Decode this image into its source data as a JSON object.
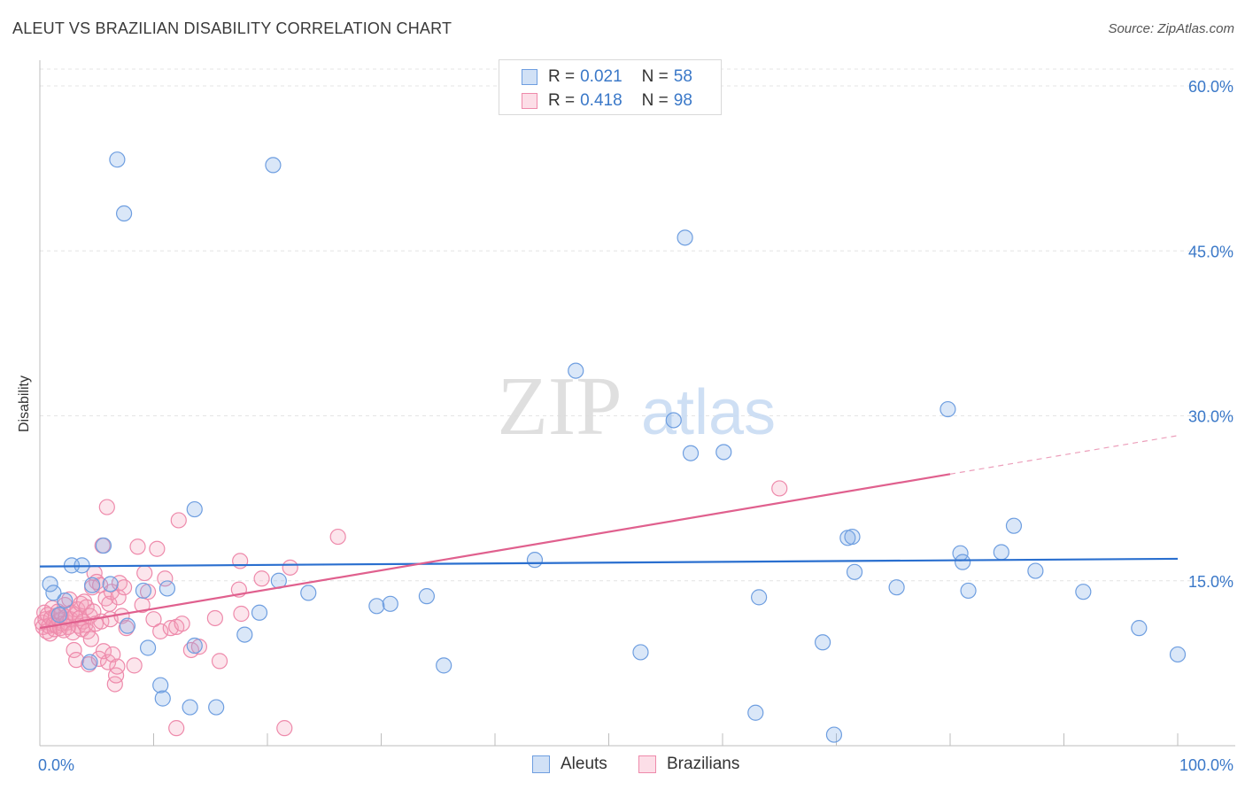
{
  "header": {
    "title": "ALEUT VS BRAZILIAN DISABILITY CORRELATION CHART",
    "source": "Source: ZipAtlas.com"
  },
  "watermark": {
    "zip": "ZIP",
    "atlas": "atlas"
  },
  "legend_top": {
    "rows": [
      {
        "r_label": "R = ",
        "r_value": "0.021",
        "n_label": "N = ",
        "n_value": "58",
        "color": "#7aa9e6"
      },
      {
        "r_label": "R = ",
        "r_value": "0.418",
        "n_label": "N = ",
        "n_value": "98",
        "color": "#f5a0bb"
      }
    ]
  },
  "legend_bottom": {
    "aleuts": "Aleuts",
    "brazilians": "Brazilians"
  },
  "colors": {
    "aleut_fill": "rgba(122,169,230,0.28)",
    "aleut_stroke": "#6e9ee0",
    "aleut_line": "#2a6fcf",
    "braz_fill": "rgba(245,160,187,0.28)",
    "braz_stroke": "#ee8aab",
    "braz_line": "#e0608e",
    "tick_label": "#3a78c8",
    "grid": "#e4e4e4"
  },
  "chart_data": {
    "type": "scatter",
    "title": "ALEUT VS BRAZILIAN DISABILITY CORRELATION CHART",
    "xlabel": "",
    "ylabel": "Disability",
    "xlim": [
      0,
      100
    ],
    "ylim": [
      0,
      60
    ],
    "x_tick_labels": [
      "0.0%",
      "100.0%"
    ],
    "y_ticks": [
      15,
      30,
      45,
      60
    ],
    "y_tick_labels": [
      "15.0%",
      "30.0%",
      "45.0%",
      "60.0%"
    ],
    "grid": "horizontal dashed",
    "legend": "top-center",
    "series": [
      {
        "name": "Aleuts",
        "R": 0.021,
        "N": 58,
        "trend": {
          "x": [
            0,
            100
          ],
          "y": [
            16.3,
            17.0
          ]
        },
        "points": [
          [
            0.9,
            14.7
          ],
          [
            1.2,
            13.9
          ],
          [
            1.7,
            11.9
          ],
          [
            2.2,
            13.2
          ],
          [
            2.8,
            16.4
          ],
          [
            3.7,
            16.4
          ],
          [
            4.4,
            7.6
          ],
          [
            4.6,
            14.6
          ],
          [
            5.6,
            18.2
          ],
          [
            6.2,
            14.7
          ],
          [
            6.8,
            53.3
          ],
          [
            7.4,
            48.4
          ],
          [
            7.7,
            10.9
          ],
          [
            9.1,
            14.1
          ],
          [
            9.5,
            8.9
          ],
          [
            10.6,
            5.5
          ],
          [
            10.8,
            4.3
          ],
          [
            11.2,
            14.3
          ],
          [
            13.2,
            3.5
          ],
          [
            13.6,
            9.1
          ],
          [
            13.6,
            21.5
          ],
          [
            15.5,
            3.5
          ],
          [
            18.0,
            10.1
          ],
          [
            19.3,
            12.1
          ],
          [
            20.5,
            52.8
          ],
          [
            21.0,
            15.0
          ],
          [
            23.6,
            13.9
          ],
          [
            29.6,
            12.7
          ],
          [
            30.8,
            12.9
          ],
          [
            34.0,
            13.6
          ],
          [
            35.5,
            7.3
          ],
          [
            43.5,
            16.9
          ],
          [
            47.1,
            34.1
          ],
          [
            52.8,
            8.5
          ],
          [
            55.7,
            29.6
          ],
          [
            56.7,
            46.2
          ],
          [
            57.2,
            26.6
          ],
          [
            60.1,
            26.7
          ],
          [
            62.9,
            3.0
          ],
          [
            63.2,
            13.5
          ],
          [
            68.8,
            9.4
          ],
          [
            69.8,
            1.0
          ],
          [
            71.0,
            18.9
          ],
          [
            71.4,
            19.0
          ],
          [
            71.6,
            15.8
          ],
          [
            75.3,
            14.4
          ],
          [
            79.8,
            30.6
          ],
          [
            80.9,
            17.5
          ],
          [
            81.1,
            16.7
          ],
          [
            81.6,
            14.1
          ],
          [
            84.5,
            17.6
          ],
          [
            85.6,
            20.0
          ],
          [
            87.5,
            15.9
          ],
          [
            91.7,
            14.0
          ],
          [
            96.6,
            10.7
          ],
          [
            100.0,
            8.3
          ]
        ]
      },
      {
        "name": "Brazilians",
        "R": 0.418,
        "N": 98,
        "trend": {
          "x": [
            0,
            80
          ],
          "y": [
            10.7,
            24.7
          ],
          "dashed_x": [
            80,
            100
          ],
          "dashed_y": [
            24.7,
            28.2
          ]
        },
        "points": [
          [
            0.2,
            11.2
          ],
          [
            0.3,
            10.8
          ],
          [
            0.4,
            12.1
          ],
          [
            0.5,
            11.5
          ],
          [
            0.6,
            10.4
          ],
          [
            0.7,
            11.9
          ],
          [
            0.8,
            10.9
          ],
          [
            0.9,
            10.2
          ],
          [
            1.0,
            11.6
          ],
          [
            1.1,
            12.5
          ],
          [
            1.2,
            11.0
          ],
          [
            1.3,
            10.6
          ],
          [
            1.4,
            11.8
          ],
          [
            1.5,
            10.9
          ],
          [
            1.6,
            12.2
          ],
          [
            1.7,
            11.4
          ],
          [
            1.8,
            10.7
          ],
          [
            1.9,
            12.0
          ],
          [
            2.0,
            11.1
          ],
          [
            2.1,
            10.5
          ],
          [
            2.2,
            12.8
          ],
          [
            2.3,
            11.7
          ],
          [
            2.4,
            11.2
          ],
          [
            2.5,
            10.8
          ],
          [
            2.6,
            13.3
          ],
          [
            2.7,
            11.5
          ],
          [
            2.8,
            12.1
          ],
          [
            2.9,
            10.3
          ],
          [
            3.0,
            8.7
          ],
          [
            3.1,
            11.9
          ],
          [
            3.2,
            7.8
          ],
          [
            3.3,
            12.4
          ],
          [
            3.4,
            10.9
          ],
          [
            3.5,
            11.6
          ],
          [
            3.6,
            12.9
          ],
          [
            3.7,
            10.6
          ],
          [
            3.8,
            11.3
          ],
          [
            3.9,
            13.1
          ],
          [
            4.0,
            11.0
          ],
          [
            4.1,
            12.6
          ],
          [
            4.2,
            10.4
          ],
          [
            4.3,
            7.4
          ],
          [
            4.4,
            11.8
          ],
          [
            4.5,
            9.7
          ],
          [
            4.6,
            14.4
          ],
          [
            4.7,
            12.2
          ],
          [
            4.8,
            15.7
          ],
          [
            4.9,
            11.1
          ],
          [
            5.0,
            14.9
          ],
          [
            5.2,
            7.9
          ],
          [
            5.3,
            14.6
          ],
          [
            5.4,
            11.3
          ],
          [
            5.5,
            18.2
          ],
          [
            5.6,
            8.6
          ],
          [
            5.8,
            13.4
          ],
          [
            5.9,
            21.7
          ],
          [
            6.0,
            7.6
          ],
          [
            6.1,
            12.9
          ],
          [
            6.2,
            11.5
          ],
          [
            6.3,
            14.0
          ],
          [
            6.4,
            8.3
          ],
          [
            6.6,
            5.6
          ],
          [
            6.7,
            6.4
          ],
          [
            6.8,
            7.2
          ],
          [
            6.9,
            13.5
          ],
          [
            7.0,
            14.8
          ],
          [
            7.2,
            11.8
          ],
          [
            7.4,
            14.4
          ],
          [
            7.6,
            10.7
          ],
          [
            8.3,
            7.3
          ],
          [
            8.6,
            18.1
          ],
          [
            9.0,
            12.8
          ],
          [
            9.2,
            15.7
          ],
          [
            9.5,
            14.0
          ],
          [
            10.0,
            11.5
          ],
          [
            10.3,
            17.9
          ],
          [
            10.6,
            10.4
          ],
          [
            11.0,
            15.2
          ],
          [
            11.5,
            10.7
          ],
          [
            12.0,
            10.8
          ],
          [
            12.2,
            20.5
          ],
          [
            12.5,
            11.1
          ],
          [
            13.3,
            8.7
          ],
          [
            14.0,
            9.0
          ],
          [
            15.4,
            11.6
          ],
          [
            15.8,
            7.7
          ],
          [
            17.5,
            14.2
          ],
          [
            17.6,
            16.8
          ],
          [
            17.7,
            12.0
          ],
          [
            19.5,
            15.2
          ],
          [
            21.5,
            1.6
          ],
          [
            22.0,
            16.2
          ],
          [
            26.2,
            19.0
          ],
          [
            12.0,
            1.6
          ],
          [
            65.0,
            23.4
          ]
        ]
      }
    ]
  }
}
